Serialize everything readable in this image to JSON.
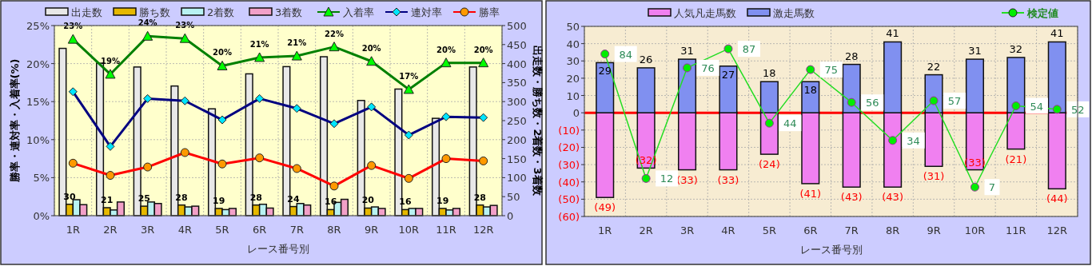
{
  "chart_data": [
    {
      "type": "bar",
      "categories": [
        "1R",
        "2R",
        "3R",
        "4R",
        "5R",
        "6R",
        "7R",
        "8R",
        "9R",
        "10R",
        "11R",
        "12R"
      ],
      "xlabel": "レース番号別",
      "ylabel": "勝率・連対率・入着率(%)",
      "y2label": "出走数・勝ち数・2着数・3着数",
      "ylim": [
        0,
        25
      ],
      "yticks": [
        {
          "value": 0,
          "label": "0%"
        },
        {
          "value": 5,
          "label": "5%"
        },
        {
          "value": 10,
          "label": "10%"
        },
        {
          "value": 15,
          "label": "15%"
        },
        {
          "value": 20,
          "label": "20%"
        },
        {
          "value": 25,
          "label": "25%"
        }
      ],
      "y2lim": [
        0,
        500
      ],
      "y2ticks": [
        0,
        50,
        100,
        150,
        200,
        250,
        300,
        350,
        400,
        450,
        500
      ],
      "grid": true,
      "legend": "top",
      "series": [
        {
          "name": "出走数",
          "axis": "y2",
          "color": "#e8e8e8",
          "values": [
            440,
            401,
            391,
            341,
            281,
            373,
            392,
            418,
            303,
            333,
            256,
            391
          ]
        },
        {
          "name": "勝ち数",
          "axis": "y2",
          "color": "#e6b800",
          "values": [
            30,
            21,
            25,
            28,
            19,
            28,
            24,
            16,
            20,
            16,
            19,
            28
          ],
          "value_labels": [
            "30",
            "21",
            "25",
            "28",
            "19",
            "28",
            "24",
            "16",
            "20",
            "16",
            "19",
            "28"
          ]
        },
        {
          "name": "2着数",
          "axis": "y2",
          "color": "#b8f2f2",
          "values": [
            42,
            15,
            36,
            23,
            16,
            30,
            32,
            35,
            23,
            19,
            15,
            23
          ]
        },
        {
          "name": "3着数",
          "axis": "y2",
          "color": "#f2a0c8",
          "values": [
            29,
            36,
            32,
            25,
            19,
            20,
            28,
            43,
            19,
            19,
            19,
            27
          ]
        },
        {
          "name": "入着率",
          "type": "line",
          "axis": "y",
          "color": "#008000",
          "colors": [
            "#00ff00",
            "#00ff00",
            "#00ff00",
            "#00ff00",
            "#00ff00",
            "#00ff00",
            "#00ff00",
            "#00ff00",
            "#00ff00",
            "#00ff00",
            "#00ff00",
            "#00ff00"
          ],
          "marker": "triangle",
          "values": [
            23.2,
            18.6,
            23.6,
            23.3,
            19.7,
            20.8,
            21.0,
            22.2,
            20.3,
            16.6,
            20.1,
            20.1
          ],
          "value_labels": [
            "23%",
            "19%",
            "24%",
            "23%",
            "20%",
            "21%",
            "21%",
            "22%",
            "20%",
            "17%",
            "20%",
            "20%"
          ]
        },
        {
          "name": "連対率",
          "type": "line",
          "axis": "y",
          "color": "#000080",
          "colors": [
            "#00e5ff",
            "#00e5ff",
            "#00e5ff",
            "#00e5ff",
            "#00e5ff",
            "#00e5ff",
            "#00e5ff",
            "#00e5ff",
            "#00e5ff",
            "#00e5ff",
            "#00e5ff",
            "#00e5ff"
          ],
          "marker": "diamond",
          "values": [
            16.3,
            9.1,
            15.4,
            15.1,
            12.6,
            15.4,
            14.1,
            12.1,
            14.3,
            10.6,
            13.0,
            12.9
          ]
        },
        {
          "name": "勝率",
          "type": "line",
          "axis": "y",
          "color": "#ff0000",
          "colors": [
            "#ff9900",
            "#ff9900",
            "#ff9900",
            "#ff9900",
            "#ff9900",
            "#ff9900",
            "#ff9900",
            "#ff9900",
            "#ff9900",
            "#ff9900",
            "#ff9900",
            "#ff9900"
          ],
          "marker": "circle",
          "values": [
            6.9,
            5.3,
            6.4,
            8.3,
            6.8,
            7.6,
            6.2,
            3.9,
            6.6,
            4.9,
            7.5,
            7.2
          ]
        }
      ]
    },
    {
      "type": "bar",
      "stacked": true,
      "categories": [
        "1R",
        "2R",
        "3R",
        "4R",
        "5R",
        "6R",
        "7R",
        "8R",
        "9R",
        "10R",
        "11R",
        "12R"
      ],
      "xlabel": "レース番号別",
      "ylim": [
        -60,
        50
      ],
      "yticks": [
        {
          "value": -60,
          "label": "(60)"
        },
        {
          "value": -50,
          "label": "(50)"
        },
        {
          "value": -40,
          "label": "(40)"
        },
        {
          "value": -30,
          "label": "(30)"
        },
        {
          "value": -20,
          "label": "(20)"
        },
        {
          "value": -10,
          "label": "(10)"
        },
        0,
        10,
        20,
        30,
        40,
        50
      ],
      "y2lim": [
        -10,
        100
      ],
      "grid": true,
      "legend": "top",
      "ref_lines": [
        {
          "axis": "y",
          "value": 0,
          "color": "#ff0000"
        }
      ],
      "series": [
        {
          "name": "人気凡走馬数",
          "color": "#f080f0",
          "values": [
            -49,
            -32,
            -33,
            -33,
            -24,
            -41,
            -43,
            -43,
            -31,
            -33,
            -21,
            -44
          ],
          "value_labels": [
            "(49)",
            "(32)",
            "(33)",
            "(33)",
            "(24)",
            "(41)",
            "(43)",
            "(43)",
            "(31)",
            "(33)",
            "(21)",
            "(44)"
          ]
        },
        {
          "name": "激走馬数",
          "color": "#8090f0",
          "values": [
            29,
            26,
            31,
            27,
            18,
            18,
            28,
            41,
            22,
            31,
            32,
            41
          ],
          "value_labels": [
            "29",
            "26",
            "31",
            "27",
            "18",
            "18",
            "28",
            "41",
            "22",
            "31",
            "32",
            "41"
          ]
        },
        {
          "name": "検定値",
          "type": "line",
          "axis": "y2",
          "color": "#22dd22",
          "colors": [
            "#00ee00",
            "#00ee00",
            "#00ee00",
            "#00ee00",
            "#00ee00",
            "#00ee00",
            "#00ee00",
            "#00ee00",
            "#00ee00",
            "#00ee00",
            "#00ee00",
            "#00ee00"
          ],
          "marker": "circle",
          "values": [
            84,
            12,
            76,
            87,
            44,
            75,
            56,
            34,
            57,
            7,
            54,
            52
          ],
          "value_labels": [
            "84",
            "12",
            "76",
            "87",
            "44",
            "75",
            "56",
            "34",
            "57",
            "7",
            "54",
            "52"
          ]
        }
      ]
    }
  ]
}
